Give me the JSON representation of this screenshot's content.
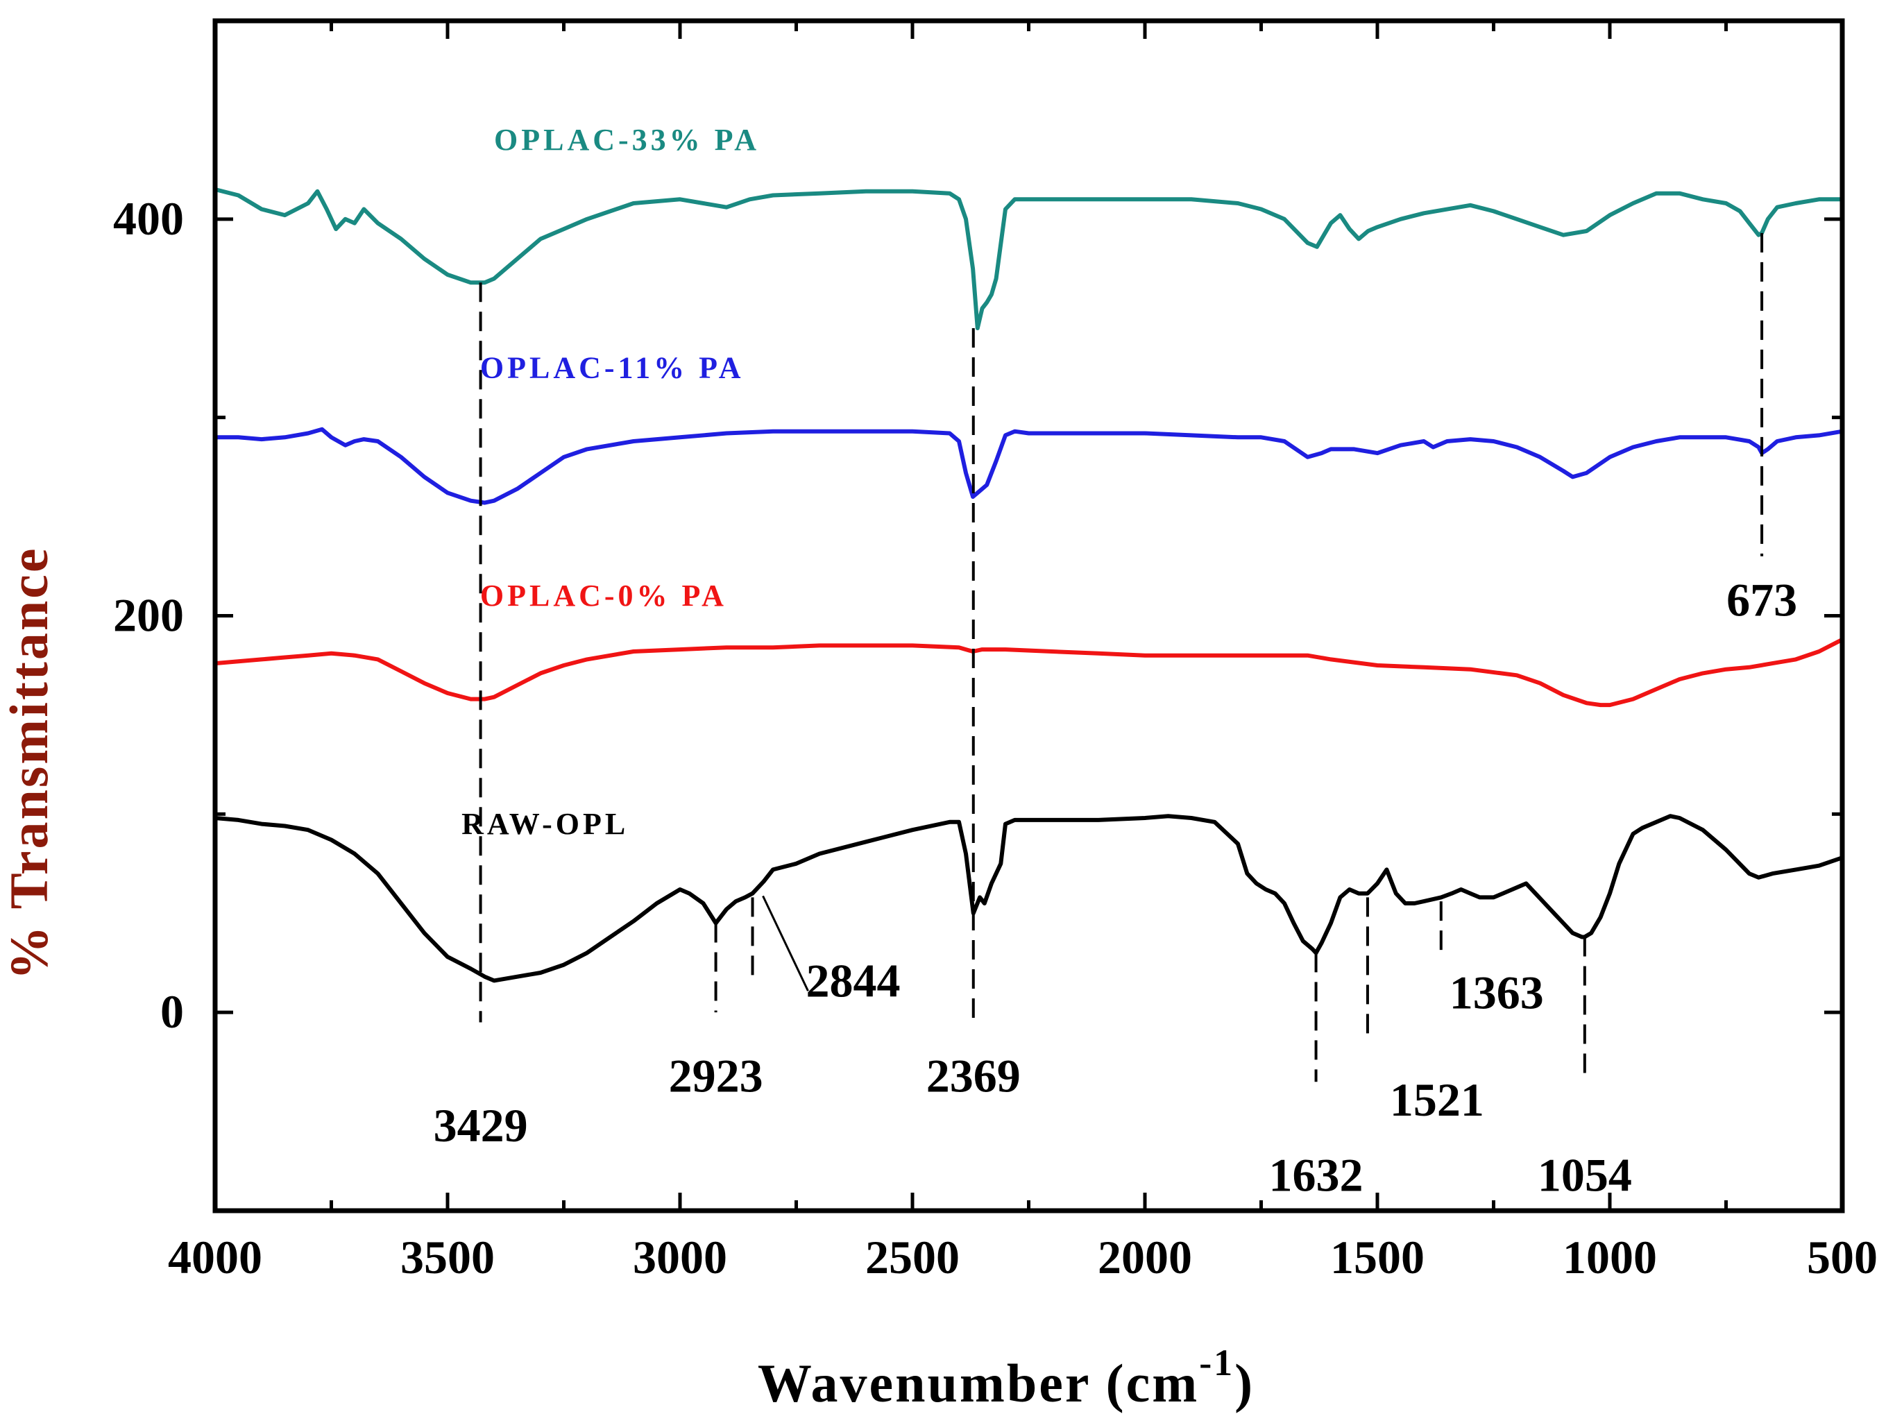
{
  "chart_data": {
    "type": "line",
    "title": "",
    "xlabel": "Wavenumber (cm",
    "xlabel_sup": "-1",
    "xlabel_close": ")",
    "ylabel": "% Transmittance",
    "xlim": [
      4000,
      500
    ],
    "ylim": [
      -100,
      500
    ],
    "xticks": [
      4000,
      3500,
      3000,
      2500,
      2000,
      1500,
      1000,
      500
    ],
    "yticks": [
      0,
      200,
      400
    ],
    "xtick_labels": [
      "4000",
      "3500",
      "3000",
      "2500",
      "2000",
      "1500",
      "1000",
      "500"
    ],
    "ytick_labels": [
      "0",
      "200",
      "400"
    ],
    "series": [
      {
        "name": "OPLAC-33% PA",
        "color": "#1a8a82",
        "label_at": [
          3400,
          435
        ],
        "x": [
          4000,
          3950,
          3900,
          3850,
          3800,
          3780,
          3760,
          3740,
          3720,
          3700,
          3680,
          3650,
          3600,
          3550,
          3500,
          3450,
          3420,
          3400,
          3350,
          3300,
          3250,
          3200,
          3100,
          3000,
          2950,
          2900,
          2850,
          2800,
          2700,
          2600,
          2500,
          2420,
          2400,
          2385,
          2370,
          2360,
          2350,
          2340,
          2330,
          2320,
          2300,
          2280,
          2250,
          2200,
          2100,
          2000,
          1900,
          1800,
          1750,
          1700,
          1650,
          1630,
          1600,
          1580,
          1560,
          1540,
          1520,
          1500,
          1450,
          1400,
          1300,
          1250,
          1200,
          1150,
          1100,
          1050,
          1000,
          950,
          900,
          850,
          800,
          750,
          720,
          700,
          690,
          680,
          673,
          660,
          640,
          600,
          550,
          500
        ],
        "y": [
          415,
          412,
          405,
          402,
          408,
          414,
          405,
          395,
          400,
          398,
          405,
          398,
          390,
          380,
          372,
          368,
          368,
          370,
          380,
          390,
          395,
          400,
          408,
          410,
          408,
          406,
          410,
          412,
          413,
          414,
          414,
          413,
          410,
          400,
          375,
          345,
          355,
          358,
          362,
          370,
          405,
          410,
          410,
          410,
          410,
          410,
          410,
          408,
          405,
          400,
          388,
          386,
          398,
          402,
          395,
          390,
          394,
          396,
          400,
          403,
          407,
          404,
          400,
          396,
          392,
          394,
          402,
          408,
          413,
          413,
          410,
          408,
          404,
          398,
          395,
          392,
          393,
          400,
          406,
          408,
          410,
          410
        ]
      },
      {
        "name": "OPLAC-11% PA",
        "color": "#1f1fe0",
        "label_at": [
          3430,
          320
        ],
        "x": [
          4000,
          3950,
          3900,
          3850,
          3800,
          3770,
          3750,
          3720,
          3700,
          3680,
          3650,
          3600,
          3550,
          3500,
          3450,
          3420,
          3400,
          3350,
          3300,
          3250,
          3200,
          3100,
          3000,
          2900,
          2800,
          2700,
          2600,
          2500,
          2420,
          2400,
          2385,
          2370,
          2360,
          2350,
          2340,
          2320,
          2300,
          2280,
          2250,
          2200,
          2100,
          2000,
          1900,
          1800,
          1750,
          1700,
          1650,
          1620,
          1600,
          1550,
          1500,
          1450,
          1400,
          1380,
          1350,
          1300,
          1250,
          1200,
          1150,
          1100,
          1080,
          1050,
          1000,
          950,
          900,
          850,
          800,
          750,
          700,
          680,
          673,
          660,
          640,
          600,
          550,
          500
        ],
        "y": [
          290,
          290,
          289,
          290,
          292,
          294,
          290,
          286,
          288,
          289,
          288,
          280,
          270,
          262,
          258,
          257,
          258,
          264,
          272,
          280,
          284,
          288,
          290,
          292,
          293,
          293,
          293,
          293,
          292,
          288,
          272,
          260,
          262,
          264,
          266,
          278,
          291,
          293,
          292,
          292,
          292,
          292,
          291,
          290,
          290,
          288,
          280,
          282,
          284,
          284,
          282,
          286,
          288,
          285,
          288,
          289,
          288,
          285,
          280,
          273,
          270,
          272,
          280,
          285,
          288,
          290,
          290,
          290,
          288,
          285,
          282,
          284,
          288,
          290,
          291,
          293
        ]
      },
      {
        "name": "OPLAC-0% PA",
        "color": "#f01414",
        "label_at": [
          3430,
          205
        ],
        "x": [
          4000,
          3950,
          3900,
          3850,
          3800,
          3750,
          3700,
          3650,
          3600,
          3550,
          3500,
          3450,
          3420,
          3400,
          3350,
          3300,
          3250,
          3200,
          3100,
          3000,
          2900,
          2800,
          2700,
          2600,
          2500,
          2400,
          2370,
          2350,
          2300,
          2200,
          2100,
          2000,
          1900,
          1800,
          1700,
          1650,
          1600,
          1500,
          1400,
          1300,
          1200,
          1150,
          1100,
          1050,
          1020,
          1000,
          950,
          900,
          850,
          800,
          750,
          700,
          650,
          600,
          550,
          500
        ],
        "y": [
          176,
          177,
          178,
          179,
          180,
          181,
          180,
          178,
          172,
          166,
          161,
          158,
          158,
          159,
          165,
          171,
          175,
          178,
          182,
          183,
          184,
          184,
          185,
          185,
          185,
          184,
          182,
          183,
          183,
          182,
          181,
          180,
          180,
          180,
          180,
          180,
          178,
          175,
          174,
          173,
          170,
          166,
          160,
          156,
          155,
          155,
          158,
          163,
          168,
          171,
          173,
          174,
          176,
          178,
          182,
          188
        ]
      },
      {
        "name": "RAW-OPL",
        "color": "#000000",
        "label_at": [
          3470,
          90
        ],
        "x": [
          4000,
          3950,
          3900,
          3850,
          3800,
          3750,
          3700,
          3650,
          3600,
          3550,
          3500,
          3450,
          3420,
          3400,
          3350,
          3300,
          3250,
          3200,
          3150,
          3100,
          3050,
          3000,
          2980,
          2950,
          2923,
          2900,
          2880,
          2860,
          2844,
          2820,
          2800,
          2750,
          2700,
          2600,
          2500,
          2420,
          2400,
          2385,
          2369,
          2355,
          2345,
          2330,
          2310,
          2300,
          2280,
          2250,
          2200,
          2100,
          2000,
          1950,
          1900,
          1850,
          1800,
          1780,
          1760,
          1740,
          1720,
          1700,
          1680,
          1660,
          1640,
          1632,
          1620,
          1600,
          1580,
          1560,
          1540,
          1521,
          1500,
          1480,
          1460,
          1440,
          1420,
          1400,
          1363,
          1340,
          1320,
          1300,
          1280,
          1250,
          1230,
          1200,
          1180,
          1160,
          1140,
          1120,
          1100,
          1080,
          1060,
          1054,
          1040,
          1020,
          1000,
          980,
          950,
          930,
          900,
          870,
          850,
          800,
          750,
          700,
          680,
          650,
          600,
          550,
          500
        ],
        "y": [
          98,
          97,
          95,
          94,
          92,
          87,
          80,
          70,
          55,
          40,
          28,
          22,
          18,
          16,
          18,
          20,
          24,
          30,
          38,
          46,
          55,
          62,
          60,
          55,
          45,
          52,
          56,
          58,
          60,
          66,
          72,
          75,
          80,
          86,
          92,
          96,
          96,
          80,
          50,
          58,
          55,
          65,
          75,
          95,
          97,
          97,
          97,
          97,
          98,
          99,
          98,
          96,
          85,
          70,
          65,
          62,
          60,
          55,
          45,
          36,
          32,
          30,
          35,
          45,
          58,
          62,
          60,
          60,
          65,
          72,
          60,
          55,
          55,
          56,
          58,
          60,
          62,
          60,
          58,
          58,
          60,
          63,
          65,
          60,
          55,
          50,
          45,
          40,
          38,
          38,
          40,
          48,
          60,
          75,
          90,
          93,
          96,
          99,
          98,
          92,
          82,
          70,
          68,
          70,
          72,
          74,
          78
        ]
      }
    ],
    "annotations": [
      {
        "label": "3429",
        "x": 3429,
        "y_top": 368,
        "y_bottom": -5,
        "label_y": -65,
        "label_dx": 0
      },
      {
        "label": "2923",
        "x": 2923,
        "y_top": 45,
        "y_bottom": 0,
        "label_y": -40,
        "label_dx": 0
      },
      {
        "label": "2844",
        "x": 2844,
        "y_top": 58,
        "y_bottom": 15,
        "label_y": 8,
        "label_dx": 145
      },
      {
        "label": "2369",
        "x": 2369,
        "y_top": 345,
        "y_bottom": -5,
        "label_y": -40,
        "label_dx": 0
      },
      {
        "label": "1632",
        "x": 1632,
        "y_top": 30,
        "y_bottom": -35,
        "label_y": -90,
        "label_dx": 0
      },
      {
        "label": "1521",
        "x": 1521,
        "y_top": 58,
        "y_bottom": -15,
        "label_y": -52,
        "label_dx": 100
      },
      {
        "label": "1363",
        "x": 1363,
        "y_top": 56,
        "y_bottom": 30,
        "label_y": 2,
        "label_dx": 80
      },
      {
        "label": "1054",
        "x": 1054,
        "y_top": 38,
        "y_bottom": -35,
        "label_y": -90,
        "label_dx": 0
      },
      {
        "label": "673",
        "x": 673,
        "y_top": 393,
        "y_bottom": 230,
        "label_y": 200,
        "label_dx": 0
      }
    ]
  }
}
